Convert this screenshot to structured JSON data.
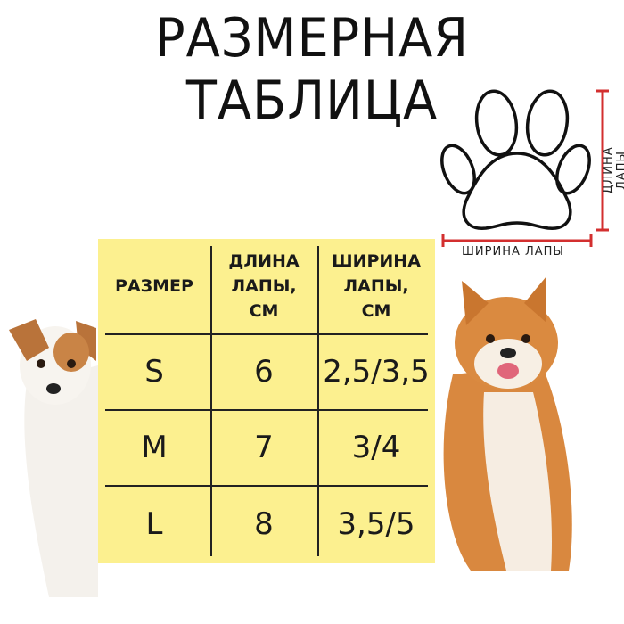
{
  "title": "РАЗМЕРНАЯ ТАБЛИЦА",
  "diagram": {
    "icon": "paw-icon",
    "width_label": "ШИРИНА ЛАПЫ",
    "length_label": "ДЛИНА ЛАПЫ",
    "measure_color": "#d32f2f"
  },
  "table": {
    "background": "#fcf08f",
    "headers": [
      "РАЗМЕР",
      "ДЛИНА ЛАПЫ, СМ",
      "ШИРИНА ЛАПЫ, СМ"
    ],
    "rows": [
      [
        "S",
        "6",
        "2,5/3,5"
      ],
      [
        "M",
        "7",
        "3/4"
      ],
      [
        "L",
        "8",
        "3,5/5"
      ]
    ]
  }
}
